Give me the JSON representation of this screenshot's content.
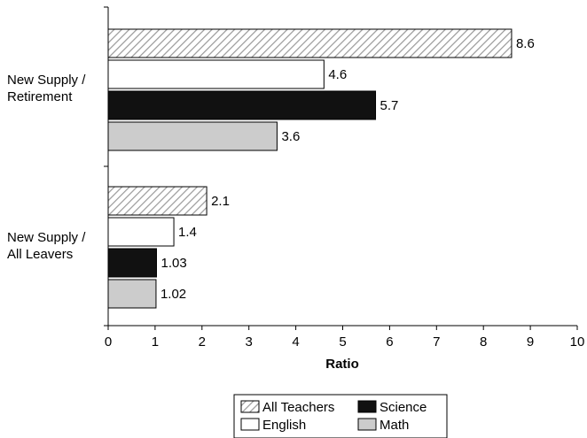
{
  "chart_data": {
    "type": "bar",
    "orientation": "horizontal",
    "title": "",
    "xlabel": "Ratio",
    "ylabel": "",
    "xlim": [
      0,
      10
    ],
    "x_ticks": [
      "0",
      "1",
      "2",
      "3",
      "4",
      "5",
      "6",
      "7",
      "8",
      "9",
      "10"
    ],
    "categories": [
      "New Supply / Retirement",
      "New Supply / All Leavers"
    ],
    "category_label_lines": [
      [
        "New Supply /",
        "Retirement"
      ],
      [
        "New Supply /",
        "All Leavers"
      ]
    ],
    "series": [
      {
        "name": "All Teachers",
        "values": [
          8.6,
          2.1
        ],
        "labels": [
          "8.6",
          "2.1"
        ],
        "fill": "hatch"
      },
      {
        "name": "English",
        "values": [
          4.6,
          1.4
        ],
        "labels": [
          "4.6",
          "1.4"
        ],
        "fill": "#ffffff"
      },
      {
        "name": "Science",
        "values": [
          5.7,
          1.03
        ],
        "labels": [
          "5.7",
          "1.03"
        ],
        "fill": "#111111"
      },
      {
        "name": "Math",
        "values": [
          3.6,
          1.02
        ],
        "labels": [
          "3.6",
          "1.02"
        ],
        "fill": "#cccccc"
      }
    ],
    "legend_position": "bottom",
    "grid": false
  }
}
